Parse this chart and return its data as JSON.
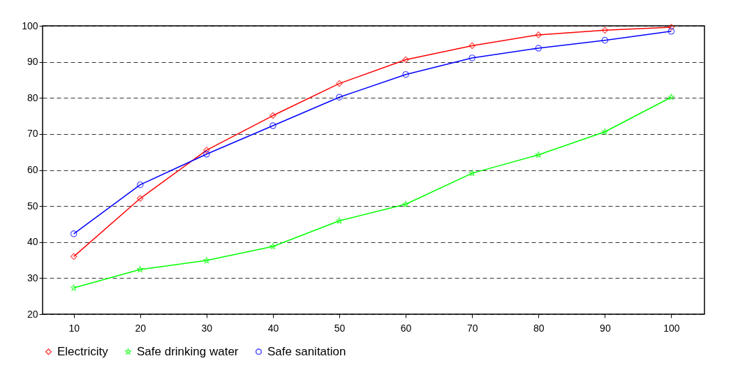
{
  "chart_data": {
    "type": "line",
    "categories": [
      "10",
      "20",
      "30",
      "40",
      "50",
      "60",
      "70",
      "80",
      "90",
      "100"
    ],
    "series": [
      {
        "name": "Electricity",
        "color": "#ff0000",
        "marker": "diamond",
        "values": [
          36.0,
          52.1,
          65.5,
          75.1,
          84.0,
          90.6,
          94.5,
          97.5,
          98.8,
          99.6
        ]
      },
      {
        "name": "Safe drinking water",
        "color": "#00ff00",
        "marker": "star",
        "values": [
          27.3,
          32.4,
          34.9,
          38.8,
          45.9,
          50.5,
          59.1,
          64.2,
          70.6,
          80.2
        ]
      },
      {
        "name": "Safe sanitation",
        "color": "#0000ff",
        "marker": "circle",
        "values": [
          42.3,
          55.9,
          64.4,
          72.3,
          80.2,
          86.5,
          91.1,
          93.8,
          96.0,
          98.5
        ]
      }
    ],
    "ylim": [
      20,
      100
    ],
    "yticks": [
      20,
      30,
      40,
      50,
      60,
      70,
      80,
      90,
      100
    ],
    "grid": "y",
    "line_style": "solid",
    "legend": "bottom"
  }
}
